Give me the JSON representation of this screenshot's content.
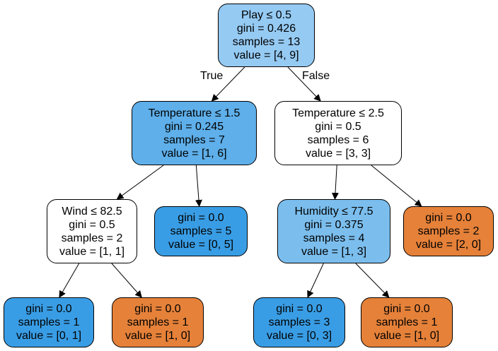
{
  "tree": {
    "n0": {
      "lines": [
        "Play ≤ 0.5",
        "gini = 0.426",
        "samples = 13",
        "value = [4, 9]"
      ],
      "fill": "#95caf3"
    },
    "n1": {
      "lines": [
        "Temperature ≤ 1.5",
        "gini = 0.245",
        "samples = 7",
        "value = [1, 6]"
      ],
      "fill": "#5eafea"
    },
    "n2": {
      "lines": [
        "Temperature ≤ 2.5",
        "gini = 0.5",
        "samples = 6",
        "value = [3, 3]"
      ],
      "fill": "#ffffff"
    },
    "n3": {
      "lines": [
        "Wind ≤ 82.5",
        "gini = 0.5",
        "samples = 2",
        "value = [1, 1]"
      ],
      "fill": "#ffffff"
    },
    "n4": {
      "lines": [
        "gini = 0.0",
        "samples = 5",
        "value = [0, 5]"
      ],
      "fill": "#399de5"
    },
    "n5": {
      "lines": [
        "Humidity ≤ 77.5",
        "gini = 0.375",
        "samples = 4",
        "value = [1, 3]"
      ],
      "fill": "#7bbeee"
    },
    "n6": {
      "lines": [
        "gini = 0.0",
        "samples = 2",
        "value = [2, 0]"
      ],
      "fill": "#e58139"
    },
    "n7": {
      "lines": [
        "gini = 0.0",
        "samples = 1",
        "value = [0, 1]"
      ],
      "fill": "#399de5"
    },
    "n8": {
      "lines": [
        "gini = 0.0",
        "samples = 1",
        "value = [1, 0]"
      ],
      "fill": "#e58139"
    },
    "n9": {
      "lines": [
        "gini = 0.0",
        "samples = 3",
        "value = [0, 3]"
      ],
      "fill": "#399de5"
    },
    "n10": {
      "lines": [
        "gini = 0.0",
        "samples = 1",
        "value = [1, 0]"
      ],
      "fill": "#e58139"
    }
  },
  "edge_labels": {
    "true_label": "True",
    "false_label": "False"
  }
}
